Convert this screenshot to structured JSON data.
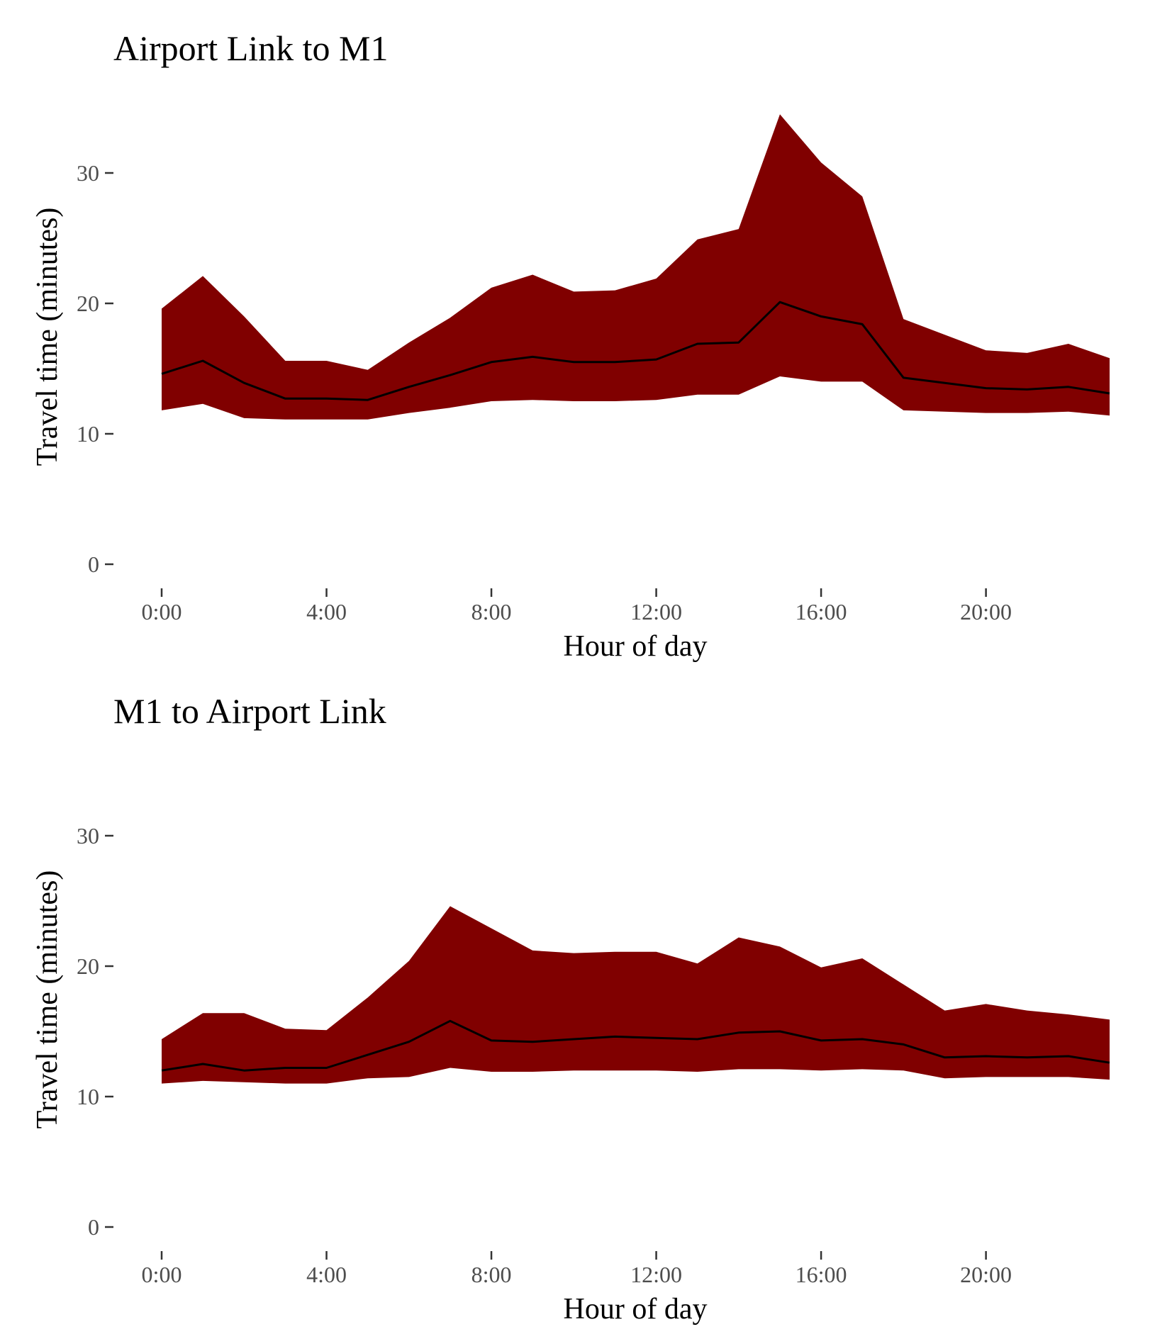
{
  "colors": {
    "band": "#800000",
    "line": "#000000",
    "tick_text": "#4d4d4d"
  },
  "chart_data": [
    {
      "type": "area",
      "title": "Airport Link to M1",
      "xlabel": "Hour of day",
      "ylabel": "Travel time (minutes)",
      "x": [
        0,
        1,
        2,
        3,
        4,
        5,
        6,
        7,
        8,
        9,
        10,
        11,
        12,
        13,
        14,
        15,
        16,
        17,
        18,
        19,
        20,
        21,
        22,
        23
      ],
      "xticks": [
        0,
        4,
        8,
        12,
        16,
        20
      ],
      "xtick_labels": [
        "0:00",
        "4:00",
        "8:00",
        "12:00",
        "16:00",
        "20:00"
      ],
      "yticks": [
        0,
        10,
        20,
        30
      ],
      "ylim": [
        0,
        34.5
      ],
      "xlim": [
        0,
        23
      ],
      "grid": false,
      "band_upper": [
        19.6,
        22.1,
        19.0,
        15.6,
        15.6,
        14.9,
        17.0,
        18.9,
        21.2,
        22.2,
        20.9,
        21.0,
        21.9,
        24.9,
        25.7,
        34.5,
        30.8,
        28.2,
        18.8,
        17.6,
        16.4,
        16.2,
        16.9,
        15.8
      ],
      "band_lower": [
        11.8,
        12.3,
        11.2,
        11.1,
        11.1,
        11.1,
        11.6,
        12.0,
        12.5,
        12.6,
        12.5,
        12.5,
        12.6,
        13.0,
        13.0,
        14.4,
        14.0,
        14.0,
        11.8,
        11.7,
        11.6,
        11.6,
        11.7,
        11.4
      ],
      "median": [
        14.6,
        15.6,
        13.9,
        12.7,
        12.7,
        12.6,
        13.6,
        14.5,
        15.5,
        15.9,
        15.5,
        15.5,
        15.7,
        16.9,
        17.0,
        20.1,
        19.0,
        18.4,
        14.3,
        13.9,
        13.5,
        13.4,
        13.6,
        13.1
      ]
    },
    {
      "type": "area",
      "title": "M1 to Airport Link",
      "xlabel": "Hour of day",
      "ylabel": "Travel time (minutes)",
      "x": [
        0,
        1,
        2,
        3,
        4,
        5,
        6,
        7,
        8,
        9,
        10,
        11,
        12,
        13,
        14,
        15,
        16,
        17,
        18,
        19,
        20,
        21,
        22,
        23
      ],
      "xticks": [
        0,
        4,
        8,
        12,
        16,
        20
      ],
      "xtick_labels": [
        "0:00",
        "4:00",
        "8:00",
        "12:00",
        "16:00",
        "20:00"
      ],
      "yticks": [
        0,
        10,
        20,
        30
      ],
      "ylim": [
        0,
        34.5
      ],
      "xlim": [
        0,
        23
      ],
      "grid": false,
      "band_upper": [
        14.4,
        16.4,
        16.4,
        15.2,
        15.1,
        17.6,
        20.4,
        24.6,
        22.9,
        21.2,
        21.0,
        21.1,
        21.1,
        20.2,
        22.2,
        21.5,
        19.9,
        20.6,
        18.6,
        16.6,
        17.1,
        16.6,
        16.3,
        15.9
      ],
      "band_lower": [
        11.0,
        11.2,
        11.1,
        11.0,
        11.0,
        11.4,
        11.5,
        12.2,
        11.9,
        11.9,
        12.0,
        12.0,
        12.0,
        11.9,
        12.1,
        12.1,
        12.0,
        12.1,
        12.0,
        11.4,
        11.5,
        11.5,
        11.5,
        11.3
      ],
      "median": [
        12.0,
        12.5,
        12.0,
        12.2,
        12.2,
        13.2,
        14.2,
        15.8,
        14.3,
        14.2,
        14.4,
        14.6,
        14.5,
        14.4,
        14.9,
        15.0,
        14.3,
        14.4,
        14.0,
        13.0,
        13.1,
        13.0,
        13.1,
        12.6
      ]
    }
  ]
}
